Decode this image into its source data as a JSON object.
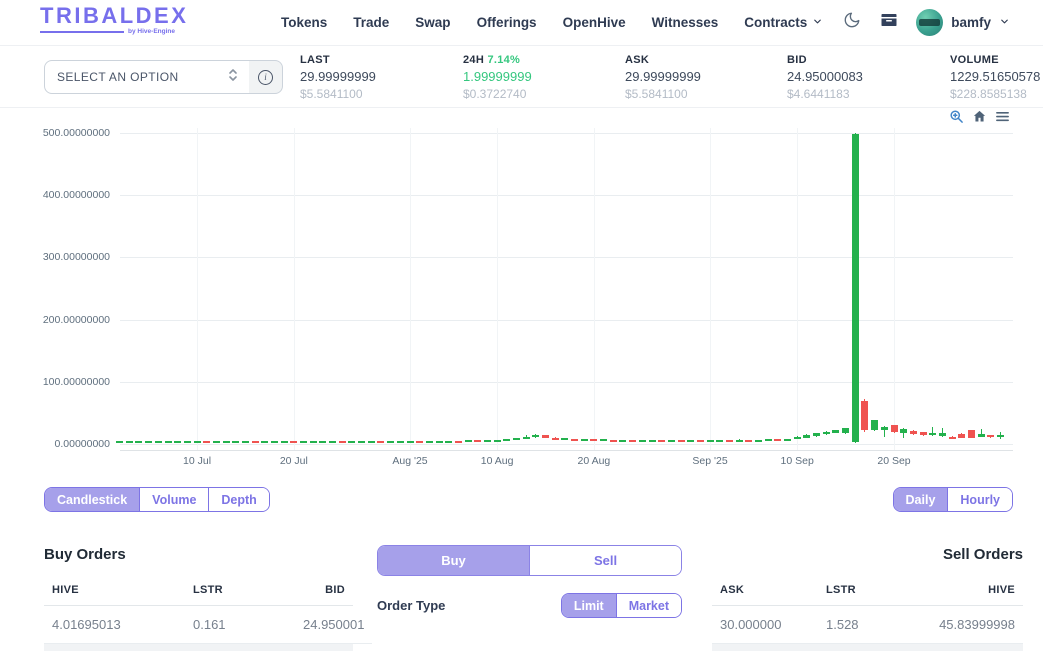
{
  "header": {
    "logo": {
      "title": "TRIBALDEX",
      "subtitle": "by Hive-Engine"
    },
    "nav": [
      {
        "label": "Tokens",
        "dropdown": false
      },
      {
        "label": "Trade",
        "dropdown": false
      },
      {
        "label": "Swap",
        "dropdown": false
      },
      {
        "label": "Offerings",
        "dropdown": false
      },
      {
        "label": "OpenHive",
        "dropdown": false
      },
      {
        "label": "Witnesses",
        "dropdown": false
      },
      {
        "label": "Contracts",
        "dropdown": true
      }
    ],
    "user": {
      "name": "bamfy"
    }
  },
  "market_bar": {
    "select_label": "SELECT AN OPTION",
    "stats": [
      {
        "label": "LAST",
        "percent": "",
        "value": "29.99999999",
        "usd": "$5.5841100",
        "positive": false
      },
      {
        "label": "24H",
        "percent": "7.14%",
        "value": "1.99999999",
        "usd": "$0.3722740",
        "positive": true
      },
      {
        "label": "ASK",
        "percent": "",
        "value": "29.99999999",
        "usd": "$5.5841100",
        "positive": false
      },
      {
        "label": "BID",
        "percent": "",
        "value": "24.95000083",
        "usd": "$4.6441183",
        "positive": false
      },
      {
        "label": "VOLUME",
        "percent": "",
        "value": "1229.51650578",
        "usd": "$228.8585138",
        "positive": false
      }
    ],
    "stat_lefts": [
      300,
      463,
      625,
      787,
      950
    ]
  },
  "chart_controls": {
    "type_buttons": [
      "Candlestick",
      "Volume",
      "Depth"
    ],
    "type_active": 0,
    "interval_buttons": [
      "Daily",
      "Hourly"
    ],
    "interval_active": 0
  },
  "chart_data": {
    "type": "candlestick",
    "pair": "LSTR/HIVE",
    "ylim": [
      0,
      508
    ],
    "y_ticks": [
      0,
      100,
      200,
      300,
      400,
      500
    ],
    "y_tick_labels": [
      "0.00000000",
      "100.00000000",
      "200.00000000",
      "300.00000000",
      "400.00000000",
      "500.00000000"
    ],
    "x_tick_labels": [
      "10 Jul",
      "20 Jul",
      "Aug '25",
      "10 Aug",
      "20 Aug",
      "Sep '25",
      "10 Sep",
      "20 Sep"
    ],
    "x_tick_candle_index": [
      8,
      18,
      30,
      39,
      49,
      61,
      70,
      80
    ],
    "interval": "daily",
    "grid": true,
    "candles_format": [
      "open",
      "close",
      "low",
      "high"
    ],
    "candles": [
      [
        3,
        4.5,
        2.5,
        5
      ],
      [
        3,
        4.5,
        2.5,
        5
      ],
      [
        3.2,
        4.6,
        2.8,
        5
      ],
      [
        3,
        4.4,
        2.6,
        4.8
      ],
      [
        3.1,
        4.5,
        2.7,
        5
      ],
      [
        3,
        4.5,
        2.5,
        5
      ],
      [
        3.2,
        4.4,
        2.8,
        4.8
      ],
      [
        3,
        4.5,
        2.5,
        5
      ],
      [
        3.1,
        4.6,
        2.7,
        5
      ],
      [
        4.6,
        3.2,
        2.8,
        5
      ],
      [
        3.2,
        4.5,
        2.8,
        5
      ],
      [
        3,
        4.4,
        2.6,
        4.8
      ],
      [
        3.1,
        4.5,
        2.7,
        5
      ],
      [
        3,
        4.5,
        2.5,
        5
      ],
      [
        4.5,
        3,
        2.6,
        5
      ],
      [
        3,
        4.4,
        2.6,
        4.8
      ],
      [
        3.1,
        4.5,
        2.7,
        5
      ],
      [
        3,
        4.5,
        2.5,
        5
      ],
      [
        4.5,
        3.1,
        2.7,
        5
      ],
      [
        3.1,
        4.5,
        2.7,
        4.9
      ],
      [
        3,
        4.4,
        2.6,
        4.8
      ],
      [
        3.2,
        4.6,
        2.8,
        5
      ],
      [
        3,
        4.5,
        2.5,
        5
      ],
      [
        4.5,
        3,
        2.6,
        4.9
      ],
      [
        3,
        4.4,
        2.6,
        4.8
      ],
      [
        3.1,
        4.5,
        2.7,
        5
      ],
      [
        3.2,
        4.6,
        2.8,
        5
      ],
      [
        4.6,
        3.1,
        2.7,
        5
      ],
      [
        3.1,
        4.5,
        2.7,
        4.9
      ],
      [
        3,
        4.4,
        2.6,
        4.8
      ],
      [
        3.2,
        4.6,
        2.8,
        5
      ],
      [
        4.5,
        3,
        2.6,
        4.9
      ],
      [
        3,
        4.5,
        2.5,
        5
      ],
      [
        3.5,
        5,
        3,
        5.5
      ],
      [
        4,
        5.5,
        3.5,
        6
      ],
      [
        5.5,
        4,
        3.5,
        6
      ],
      [
        4.5,
        6,
        4,
        6.5
      ],
      [
        6,
        4.5,
        4,
        6.5
      ],
      [
        5,
        6.5,
        4.5,
        7
      ],
      [
        5.5,
        7,
        5,
        7.5
      ],
      [
        6,
        8,
        5.5,
        9
      ],
      [
        7,
        9.5,
        6.5,
        10
      ],
      [
        9,
        12,
        8.5,
        14
      ],
      [
        11,
        14,
        10,
        16
      ],
      [
        14,
        10,
        9,
        15
      ],
      [
        10,
        7,
        6.5,
        11
      ],
      [
        7,
        9,
        6.5,
        9.5
      ],
      [
        8,
        6.5,
        6,
        8.5
      ],
      [
        6.5,
        8,
        6,
        8.5
      ],
      [
        8,
        6,
        5.5,
        8.5
      ],
      [
        6,
        7.5,
        5.5,
        8
      ],
      [
        7,
        5.5,
        5,
        7.5
      ],
      [
        5.5,
        7,
        5,
        7.5
      ],
      [
        6.5,
        5,
        4.5,
        7
      ],
      [
        5,
        6.5,
        4.5,
        7
      ],
      [
        6,
        7,
        5.5,
        7.5
      ],
      [
        7,
        5.5,
        5,
        7.5
      ],
      [
        5.5,
        6.5,
        5,
        7
      ],
      [
        6.5,
        5.5,
        5,
        7
      ],
      [
        5.5,
        7,
        5,
        7.5
      ],
      [
        6.5,
        5,
        4,
        7
      ],
      [
        5,
        6.5,
        4.5,
        7
      ],
      [
        6,
        7,
        5.5,
        7.5
      ],
      [
        6.5,
        5,
        4.5,
        7
      ],
      [
        5,
        6,
        4.5,
        8.5
      ],
      [
        6,
        5,
        4.5,
        6.5
      ],
      [
        5,
        6.5,
        4.5,
        7
      ],
      [
        6,
        7.5,
        5.5,
        8
      ],
      [
        7.5,
        6,
        5.5,
        8
      ],
      [
        6,
        8.5,
        5.5,
        9
      ],
      [
        8,
        11,
        7.5,
        13
      ],
      [
        10,
        14,
        9.5,
        16
      ],
      [
        13,
        17,
        12,
        18
      ],
      [
        16,
        20,
        15,
        21
      ],
      [
        18,
        22,
        17,
        23
      ],
      [
        17,
        25,
        16,
        26
      ],
      [
        3,
        498,
        2,
        500
      ],
      [
        69,
        22,
        20,
        72
      ],
      [
        22,
        38,
        21,
        39
      ],
      [
        22,
        28,
        12,
        29
      ],
      [
        30,
        19,
        18,
        31
      ],
      [
        18,
        24,
        10,
        25
      ],
      [
        21,
        16,
        15,
        22
      ],
      [
        19,
        14,
        13,
        20
      ],
      [
        14,
        18,
        13,
        28
      ],
      [
        13,
        17,
        12,
        26
      ],
      [
        12,
        9,
        8,
        13
      ],
      [
        16,
        10,
        9,
        17
      ],
      [
        22,
        10,
        9,
        23
      ],
      [
        12,
        16,
        11,
        24
      ],
      [
        14,
        11,
        10,
        15
      ],
      [
        12,
        15,
        8,
        20
      ]
    ]
  },
  "orders": {
    "buy": {
      "title": "Buy Orders",
      "headers": [
        "HIVE",
        "LSTR",
        "BID"
      ],
      "rows": [
        [
          "4.01695013",
          "0.161",
          "24.950001"
        ]
      ]
    },
    "sell": {
      "title": "Sell Orders",
      "headers": [
        "ASK",
        "LSTR",
        "HIVE"
      ],
      "rows": [
        [
          "30.000000",
          "1.528",
          "45.83999998"
        ]
      ]
    }
  },
  "trade_panel": {
    "tabs": [
      "Buy",
      "Sell"
    ],
    "active_tab": 0,
    "order_type_label": "Order Type",
    "order_types": [
      "Limit",
      "Market"
    ],
    "active_order_type": 0
  },
  "colors": {
    "accent": "#7d74e5",
    "accent_fill": "#a6a0ea",
    "logo": "#776fec",
    "green_text": "#35c77f",
    "candle_green": "#23b14d",
    "candle_red": "#ef5350",
    "modebar_blue": "#4285c8",
    "modebar_dark": "#4f6378"
  }
}
